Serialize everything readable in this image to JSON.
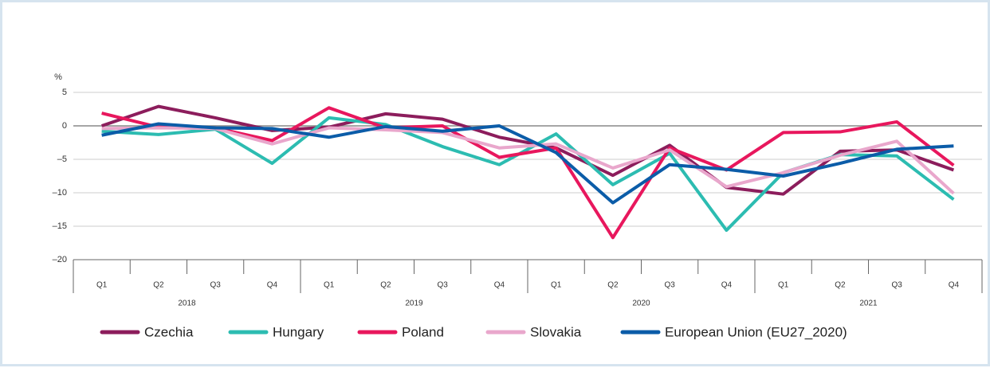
{
  "chart_data": {
    "type": "line",
    "y_label": "%",
    "categories": [
      "Q1",
      "Q2",
      "Q3",
      "Q4",
      "Q1",
      "Q2",
      "Q3",
      "Q4",
      "Q1",
      "Q2",
      "Q3",
      "Q4",
      "Q1",
      "Q2",
      "Q3",
      "Q4"
    ],
    "years": [
      "2018",
      "2019",
      "2020",
      "2021"
    ],
    "ylim": [
      -20,
      5
    ],
    "yticks": [
      {
        "value": -20,
        "label": "–20"
      },
      {
        "value": -15,
        "label": "–15"
      },
      {
        "value": -10,
        "label": "–10"
      },
      {
        "value": -5,
        "label": "–5"
      },
      0,
      5
    ],
    "grid": true,
    "legend": "bottom",
    "series": [
      {
        "name": "Czechia",
        "color": "#8c1d5c",
        "values": [
          0,
          2.9,
          1.2,
          -0.7,
          -0.2,
          1.8,
          1.0,
          -1.7,
          -3.3,
          -7.4,
          -2.9,
          -9.2,
          -10.2,
          -3.8,
          -3.6,
          -6.6
        ]
      },
      {
        "name": "Hungary",
        "color": "#2cbcb1",
        "values": [
          -0.8,
          -1.3,
          -0.5,
          -5.6,
          1.2,
          0.2,
          -3.1,
          -5.8,
          -1.2,
          -8.8,
          -4.1,
          -15.6,
          -7.0,
          -4.3,
          -4.5,
          -11.0
        ]
      },
      {
        "name": "Poland",
        "color": "#e8175d",
        "values": [
          1.9,
          -0.2,
          -0.3,
          -2.2,
          2.7,
          -0.3,
          0.0,
          -4.7,
          -3.3,
          -16.7,
          -3.3,
          -6.6,
          -1.0,
          -0.9,
          0.6,
          -5.9
        ]
      },
      {
        "name": "Slovakia",
        "color": "#e9a7cc",
        "values": [
          -0.4,
          -0.3,
          -0.4,
          -2.7,
          -0.3,
          -0.6,
          -1.0,
          -3.3,
          -2.7,
          -6.3,
          -3.6,
          -9.1,
          -7.0,
          -4.4,
          -2.3,
          -10.1
        ]
      },
      {
        "name": "European Union (EU27_2020)",
        "color": "#0b5ca8",
        "values": [
          -1.4,
          0.3,
          -0.3,
          -0.4,
          -1.7,
          -0.1,
          -0.8,
          0.0,
          -4.0,
          -11.5,
          -5.8,
          -6.5,
          -7.5,
          -5.6,
          -3.5,
          -3.0
        ]
      }
    ]
  }
}
